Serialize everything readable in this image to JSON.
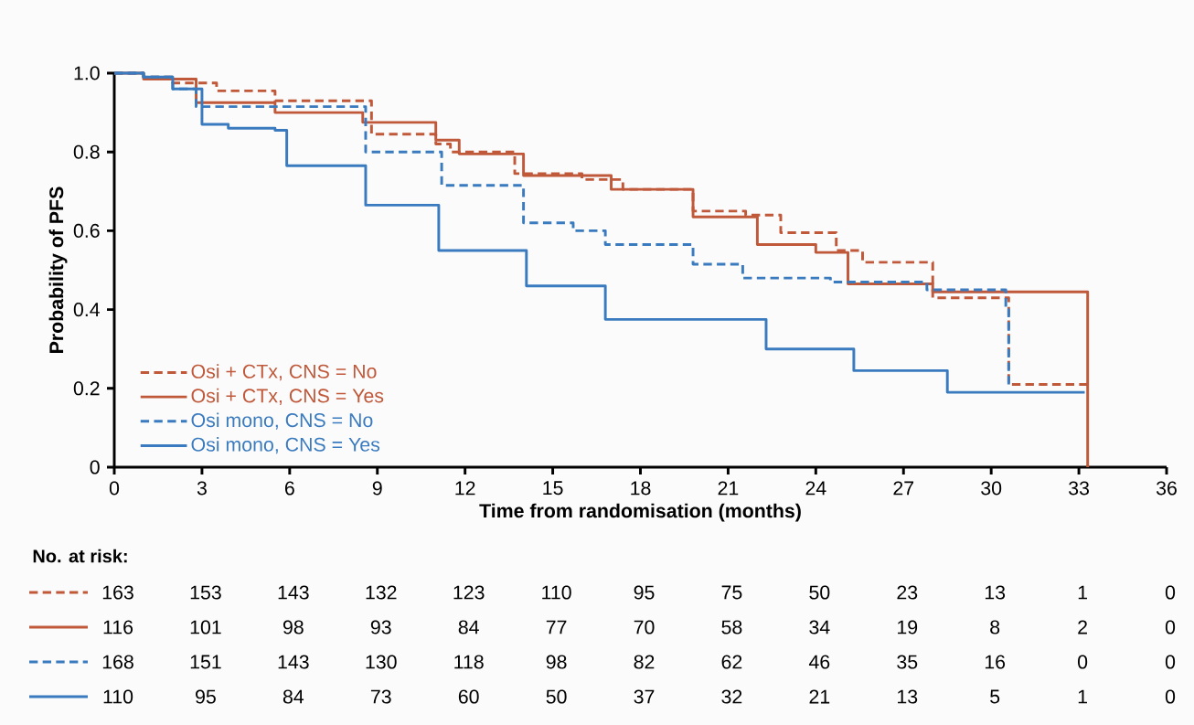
{
  "chart_data": {
    "type": "step",
    "xlabel": "Time from randomisation (months)",
    "ylabel": "Probability of PFS",
    "xlim": [
      0,
      36
    ],
    "ylim": [
      0,
      1.0
    ],
    "xticks": [
      0,
      3,
      6,
      9,
      12,
      15,
      18,
      21,
      24,
      27,
      30,
      33,
      36
    ],
    "yticks": [
      0,
      0.2,
      0.4,
      0.6,
      0.8,
      {
        "value": 1.0,
        "label": "1.0"
      }
    ],
    "grid": false,
    "legend": "bottom left",
    "series": [
      {
        "name": "Osi + CTx, CNS = No",
        "color": "#c0583a",
        "line_style": "dashed",
        "x": [
          0,
          1,
          2,
          3.5,
          5.5,
          8.8,
          11.0,
          11.5,
          13.7,
          16.0,
          17.4,
          19.8,
          21.6,
          22.8,
          24.7,
          25.6,
          28.0,
          30.6,
          33.3
        ],
        "values": [
          1.0,
          0.99,
          0.975,
          0.955,
          0.93,
          0.845,
          0.82,
          0.8,
          0.745,
          0.73,
          0.705,
          0.65,
          0.64,
          0.595,
          0.55,
          0.52,
          0.43,
          0.21,
          0.21
        ]
      },
      {
        "name": "Osi + CTx, CNS = Yes",
        "color": "#c0583a",
        "line_style": "solid",
        "x": [
          0,
          1,
          2.8,
          5.5,
          8.5,
          11.0,
          11.8,
          14.0,
          17.0,
          19.8,
          22.0,
          24.0,
          25.1,
          28.0,
          33.3,
          33.3
        ],
        "values": [
          1.0,
          0.985,
          0.925,
          0.9,
          0.875,
          0.83,
          0.795,
          0.74,
          0.705,
          0.635,
          0.565,
          0.545,
          0.465,
          0.445,
          0.445,
          0
        ]
      },
      {
        "name": "Osi mono, CNS = No",
        "color": "#3a7bbf",
        "line_style": "dashed",
        "x": [
          0,
          1,
          2,
          2.8,
          8.6,
          11.2,
          14.0,
          15.7,
          16.8,
          19.8,
          21.5,
          24.5,
          27.8,
          30.5,
          30.6
        ],
        "values": [
          1.0,
          0.99,
          0.96,
          0.915,
          0.8,
          0.715,
          0.62,
          0.6,
          0.565,
          0.515,
          0.48,
          0.47,
          0.45,
          0.4,
          0.21
        ]
      },
      {
        "name": "Osi mono, CNS = Yes",
        "color": "#3a7bbf",
        "line_style": "solid",
        "x": [
          0,
          1,
          2,
          3.0,
          3.9,
          5.5,
          5.9,
          8.6,
          11.1,
          14.1,
          16.8,
          22.3,
          25.3,
          28.5,
          33.2
        ],
        "values": [
          1.0,
          0.99,
          0.96,
          0.87,
          0.86,
          0.855,
          0.765,
          0.665,
          0.55,
          0.46,
          0.375,
          0.3,
          0.245,
          0.19,
          0.19
        ]
      }
    ],
    "annotations": [
      "No. at risk:",
      "163",
      "153",
      "143",
      "132",
      "123",
      "110",
      "95",
      "75",
      "50",
      "23",
      "13",
      "1",
      "0",
      "116",
      "101",
      "98",
      "93",
      "84",
      "77",
      "70",
      "58",
      "34",
      "19",
      "8",
      "2",
      "0",
      "168",
      "151",
      "143",
      "130",
      "118",
      "98",
      "82",
      "62",
      "46",
      "35",
      "16",
      "0",
      "0",
      "110",
      "95",
      "84",
      "73",
      "60",
      "50",
      "37",
      "32",
      "21",
      "13",
      "5",
      "1",
      "0"
    ]
  }
}
